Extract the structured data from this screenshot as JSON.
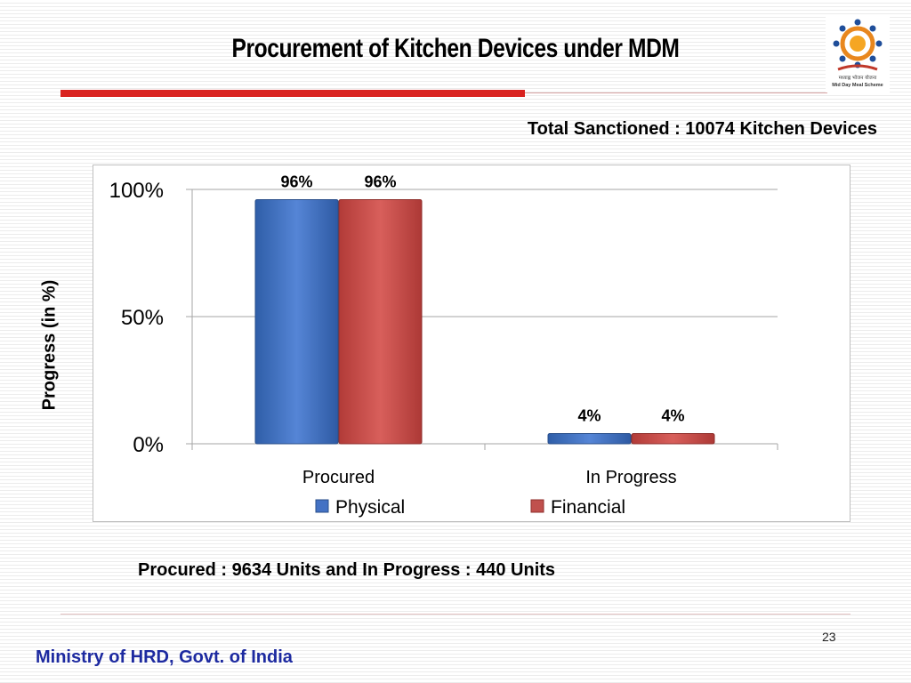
{
  "slide": {
    "title": "Procurement of Kitchen Devices under MDM",
    "sanctioned": "Total Sanctioned  : 10074  Kitchen Devices",
    "note": "Procured : 9634 Units and In Progress : 440 Units",
    "page_number": "23",
    "footer": "Ministry of HRD, Govt. of India",
    "logo_text_hindi": "मध्याह्न भोजन योजना",
    "logo_text": "Mid Day Meal Scheme"
  },
  "colors": {
    "accent_red": "#d9221f",
    "physical": "#4472c4",
    "financial": "#c0504d",
    "footer_text": "#1d2aa0"
  },
  "chart_data": {
    "type": "bar",
    "categories": [
      "Procured",
      "In Progress"
    ],
    "series": [
      {
        "name": "Physical",
        "values": [
          96,
          4
        ],
        "labels": [
          "96%",
          "4%"
        ]
      },
      {
        "name": "Financial",
        "values": [
          96,
          4
        ],
        "labels": [
          "96%",
          "4%"
        ]
      }
    ],
    "ylabel": "Progress (in %)",
    "ylim": [
      0,
      100
    ],
    "yticks": [
      0,
      50,
      100
    ],
    "ytick_labels": [
      "0%",
      "50%",
      "100%"
    ],
    "grid": true,
    "legend": "bottom"
  }
}
